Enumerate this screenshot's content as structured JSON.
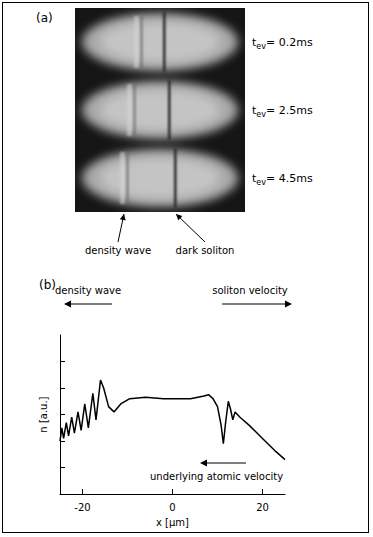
{
  "panel_a": {
    "label": "(a)",
    "times": [
      {
        "symbol": "t",
        "subscript": "ev",
        "text": "= 0.2ms"
      },
      {
        "symbol": "t",
        "subscript": "ev",
        "text": "= 2.5ms"
      },
      {
        "symbol": "t",
        "subscript": "ev",
        "text": "= 4.5ms"
      }
    ],
    "annotations": [
      "density wave",
      "dark soliton"
    ]
  },
  "chart_data": {
    "type": "line",
    "title": "(b)",
    "xlabel": "x [μm]",
    "ylabel": "n [a.u.]",
    "x": [
      -25,
      -24.6,
      -24.2,
      -23.6,
      -23.1,
      -22.4,
      -21.8,
      -21.0,
      -20.3,
      -19.5,
      -18.7,
      -17.7,
      -17.0,
      -16.0,
      -15.3,
      -14.2,
      -13.0,
      -11.5,
      -9.5,
      -6,
      -2,
      0,
      4,
      7,
      8,
      9,
      10,
      10.8,
      11.3,
      11.8,
      12.4,
      12.9,
      13.4,
      13.9,
      15,
      17,
      20,
      23,
      25
    ],
    "values": [
      2.0,
      2.5,
      2.1,
      2.7,
      2.2,
      2.9,
      2.3,
      3.1,
      2.4,
      3.4,
      2.5,
      3.8,
      2.8,
      4.3,
      4.0,
      3.3,
      3.1,
      3.4,
      3.6,
      3.65,
      3.6,
      3.6,
      3.6,
      3.7,
      3.75,
      3.6,
      3.3,
      2.6,
      1.9,
      2.7,
      3.5,
      3.2,
      2.8,
      3.1,
      2.9,
      2.6,
      2.1,
      1.6,
      1.3
    ],
    "color": "#000000",
    "xlim": [
      -25,
      25
    ],
    "xticks": [
      -20,
      0,
      20
    ],
    "ylim": [
      0,
      6
    ],
    "yticks": [
      1,
      2,
      3,
      4,
      5
    ],
    "tick_labels": "x",
    "grid": false,
    "annotations": [
      "density wave",
      "soliton velocity",
      "underlying atomic velocity"
    ]
  }
}
